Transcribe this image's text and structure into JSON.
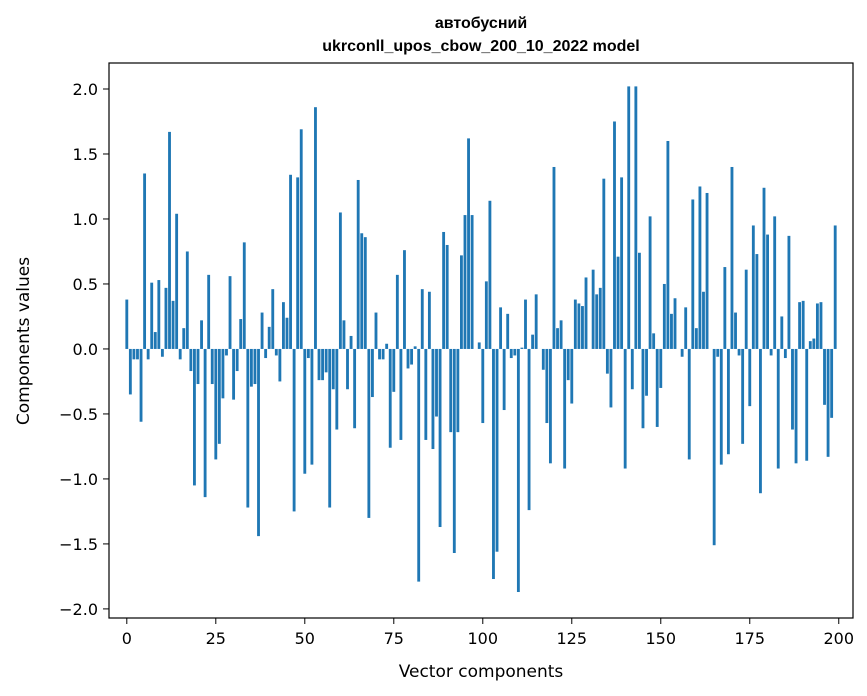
{
  "chart_data": {
    "type": "bar",
    "title": "автобусний",
    "subtitle": "ukrconll_upos_cbow_200_10_2022 model",
    "xlabel": "Vector components",
    "ylabel": "Components values",
    "xlim": [
      -5,
      204
    ],
    "ylim": [
      -2.07,
      2.2
    ],
    "xticks": [
      0,
      25,
      50,
      75,
      100,
      125,
      150,
      175,
      200
    ],
    "yticks": [
      -2.0,
      -1.5,
      -1.0,
      -0.5,
      0.0,
      0.5,
      1.0,
      1.5,
      2.0
    ],
    "ytick_labels": [
      "−2.0",
      "−1.5",
      "−1.0",
      "−0.5",
      "0.0",
      "0.5",
      "1.0",
      "1.5",
      "2.0"
    ],
    "xtick_labels": [
      "0",
      "25",
      "50",
      "75",
      "100",
      "125",
      "150",
      "175",
      "200"
    ],
    "bar_color": "#1f77b4",
    "grid": false,
    "x_start": 0,
    "values": [
      0.38,
      -0.35,
      -0.08,
      -0.08,
      -0.56,
      1.35,
      -0.08,
      0.51,
      0.13,
      0.53,
      -0.06,
      0.47,
      1.67,
      0.37,
      1.04,
      -0.08,
      0.16,
      0.75,
      -0.17,
      -1.05,
      -0.27,
      0.22,
      -1.14,
      0.57,
      -0.27,
      -0.85,
      -0.73,
      -0.38,
      -0.05,
      0.56,
      -0.39,
      -0.17,
      0.23,
      0.82,
      -1.22,
      -0.29,
      -0.27,
      -1.44,
      0.28,
      -0.07,
      0.17,
      0.46,
      -0.05,
      -0.25,
      0.36,
      0.24,
      1.34,
      -1.25,
      1.32,
      1.69,
      -0.96,
      -0.07,
      -0.89,
      1.86,
      -0.24,
      -0.24,
      -0.18,
      -1.22,
      -0.31,
      -0.62,
      1.05,
      0.22,
      -0.31,
      0.1,
      -0.61,
      1.3,
      0.89,
      0.86,
      -1.3,
      -0.37,
      0.28,
      -0.08,
      -0.08,
      0.04,
      -0.76,
      -0.33,
      0.57,
      -0.7,
      0.76,
      -0.15,
      -0.12,
      0.02,
      -1.79,
      0.46,
      -0.7,
      0.44,
      -0.77,
      -0.52,
      -1.37,
      0.9,
      0.8,
      -0.64,
      -1.57,
      -0.64,
      0.72,
      1.03,
      1.62,
      1.03,
      0.0,
      0.05,
      -0.57,
      0.52,
      1.14,
      -1.77,
      -1.56,
      0.32,
      -0.47,
      0.27,
      -0.07,
      -0.05,
      -1.87,
      0.01,
      0.38,
      -1.24,
      0.11,
      0.42,
      0.0,
      -0.16,
      -0.57,
      -0.88,
      1.4,
      0.16,
      0.22,
      -0.92,
      -0.24,
      -0.42,
      0.38,
      0.35,
      0.33,
      0.55,
      0.0,
      0.61,
      0.42,
      0.47,
      1.31,
      -0.19,
      -0.45,
      1.75,
      0.71,
      1.32,
      -0.92,
      2.02,
      -0.31,
      2.02,
      0.74,
      -0.61,
      -0.36,
      1.02,
      0.12,
      -0.6,
      -0.3,
      0.5,
      1.6,
      0.27,
      0.39,
      0.0,
      -0.06,
      0.32,
      -0.85,
      1.15,
      0.16,
      1.25,
      0.44,
      1.2,
      0.0,
      -1.51,
      -0.06,
      -0.89,
      0.63,
      -0.81,
      1.4,
      0.28,
      -0.05,
      -0.73,
      0.61,
      -0.44,
      0.95,
      0.73,
      -1.11,
      1.24,
      0.88,
      -0.05,
      1.02,
      -0.92,
      0.25,
      -0.07,
      0.87,
      -0.62,
      -0.88,
      0.36,
      0.37,
      -0.86,
      0.06,
      0.08,
      0.35,
      0.36,
      -0.43,
      -0.83,
      -0.53,
      0.95
    ]
  }
}
